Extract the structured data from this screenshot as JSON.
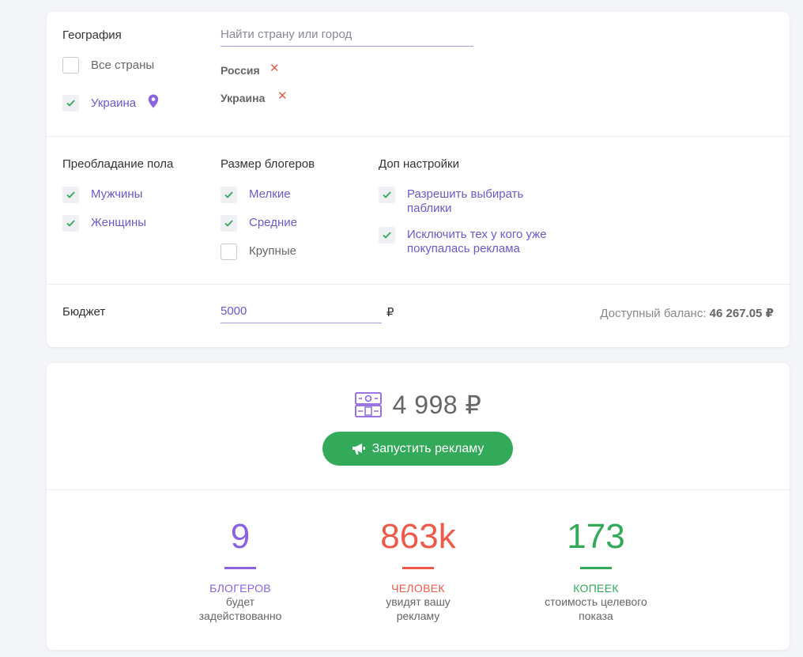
{
  "geo": {
    "label": "География",
    "search_placeholder": "Найти страну или город",
    "options": [
      {
        "label": "Все страны",
        "checked": false
      },
      {
        "label": "Украина",
        "checked": true,
        "icon": "location-pin-icon"
      }
    ],
    "selected": [
      {
        "label": "Россия",
        "remove_icon": "close-icon"
      },
      {
        "label": "Украина",
        "remove_icon": "close-icon"
      }
    ]
  },
  "gender": {
    "label": "Преобладание пола",
    "options": [
      {
        "label": "Мужчины",
        "checked": true
      },
      {
        "label": "Женщины",
        "checked": true
      }
    ]
  },
  "blogger_size": {
    "label": "Размер блогеров",
    "options": [
      {
        "label": "Мелкие",
        "checked": true
      },
      {
        "label": "Средние",
        "checked": true
      },
      {
        "label": "Крупные",
        "checked": false
      }
    ]
  },
  "extra": {
    "label": "Доп настройки",
    "options": [
      {
        "label_line1": "Разрешить выбирать",
        "label_line2": "паблики",
        "checked": true
      },
      {
        "label_line1": "Исключить тех у кого уже",
        "label_line2": "покупалась реклама",
        "checked": true
      }
    ]
  },
  "budget": {
    "label": "Бюджет",
    "value": "5000",
    "currency": "₽",
    "balance_label": "Доступный баланс:",
    "balance_value": "46 267.05 ₽"
  },
  "summary": {
    "icon": "money-icon",
    "amount": "4 998 ₽",
    "launch_button": "Запустить рекламу",
    "launch_icon": "megaphone-icon"
  },
  "stats": [
    {
      "number": "9",
      "title": "БЛОГЕРОВ",
      "desc": "будет задействованно",
      "color": "#8a63e0"
    },
    {
      "number": "863k",
      "title": "ЧЕЛОВЕК",
      "desc": "увидят вашу рекламу",
      "color": "#ee5a4a"
    },
    {
      "number": "173",
      "title": "КОПЕЕК",
      "desc": "стоимость целевого показа",
      "color": "#33a95a"
    }
  ],
  "colors": {
    "accent": "#6a5acd",
    "check": "#33a95a",
    "remove": "#e85b4a",
    "button": "#33a95a"
  }
}
